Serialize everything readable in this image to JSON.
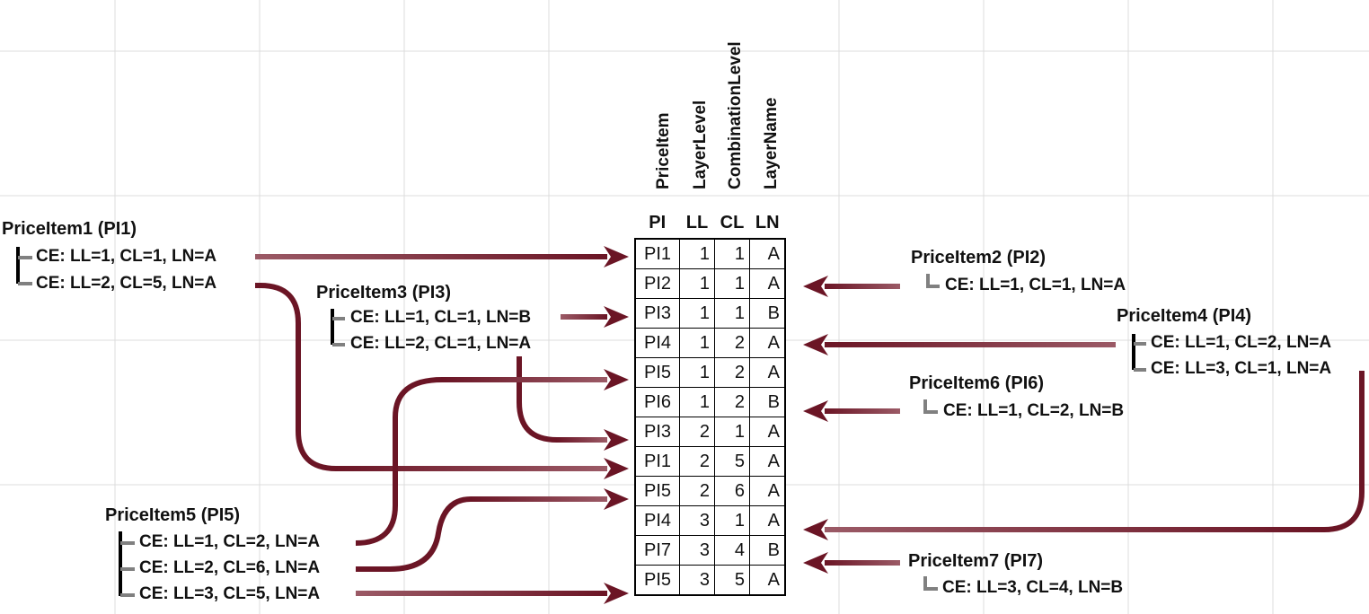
{
  "vertical_headers": [
    "PriceItem",
    "LayerLevel",
    "CombinationLevel",
    "LayerName"
  ],
  "table": {
    "headers": [
      "PI",
      "LL",
      "CL",
      "LN"
    ],
    "rows": [
      [
        "PI1",
        "1",
        "1",
        "A"
      ],
      [
        "PI2",
        "1",
        "1",
        "A"
      ],
      [
        "PI3",
        "1",
        "1",
        "B"
      ],
      [
        "PI4",
        "1",
        "2",
        "A"
      ],
      [
        "PI5",
        "1",
        "2",
        "A"
      ],
      [
        "PI6",
        "1",
        "2",
        "B"
      ],
      [
        "PI3",
        "2",
        "1",
        "A"
      ],
      [
        "PI1",
        "2",
        "5",
        "A"
      ],
      [
        "PI5",
        "2",
        "6",
        "A"
      ],
      [
        "PI4",
        "3",
        "1",
        "A"
      ],
      [
        "PI7",
        "3",
        "4",
        "B"
      ],
      [
        "PI5",
        "3",
        "5",
        "A"
      ]
    ]
  },
  "items": {
    "pi1": {
      "title": "PriceItem1 (PI1)",
      "ce": [
        "CE: LL=1, CL=1, LN=A",
        "CE: LL=2, CL=5, LN=A"
      ]
    },
    "pi2": {
      "title": "PriceItem2 (PI2)",
      "ce": [
        "CE: LL=1, CL=1, LN=A"
      ]
    },
    "pi3": {
      "title": "PriceItem3 (PI3)",
      "ce": [
        "CE: LL=1, CL=1, LN=B",
        "CE: LL=2, CL=1, LN=A"
      ]
    },
    "pi4": {
      "title": "PriceItem4 (PI4)",
      "ce": [
        "CE: LL=1, CL=2, LN=A",
        "CE: LL=3, CL=1, LN=A"
      ]
    },
    "pi5": {
      "title": "PriceItem5 (PI5)",
      "ce": [
        "CE: LL=1, CL=2, LN=A",
        "CE: LL=2, CL=6, LN=A",
        "CE: LL=3, CL=5, LN=A"
      ]
    },
    "pi6": {
      "title": "PriceItem6 (PI6)",
      "ce": [
        "CE: LL=1, CL=2, LN=B"
      ]
    },
    "pi7": {
      "title": "PriceItem7 (PI7)",
      "ce": [
        "CE: LL=3, CL=4, LN=B"
      ]
    }
  },
  "colors": {
    "arrow_dark": "#6b1525",
    "arrow_light": "#9b5a66",
    "bracket_dark": "#000000",
    "bracket_gray": "#808080",
    "grid": "#d9d9d9"
  }
}
